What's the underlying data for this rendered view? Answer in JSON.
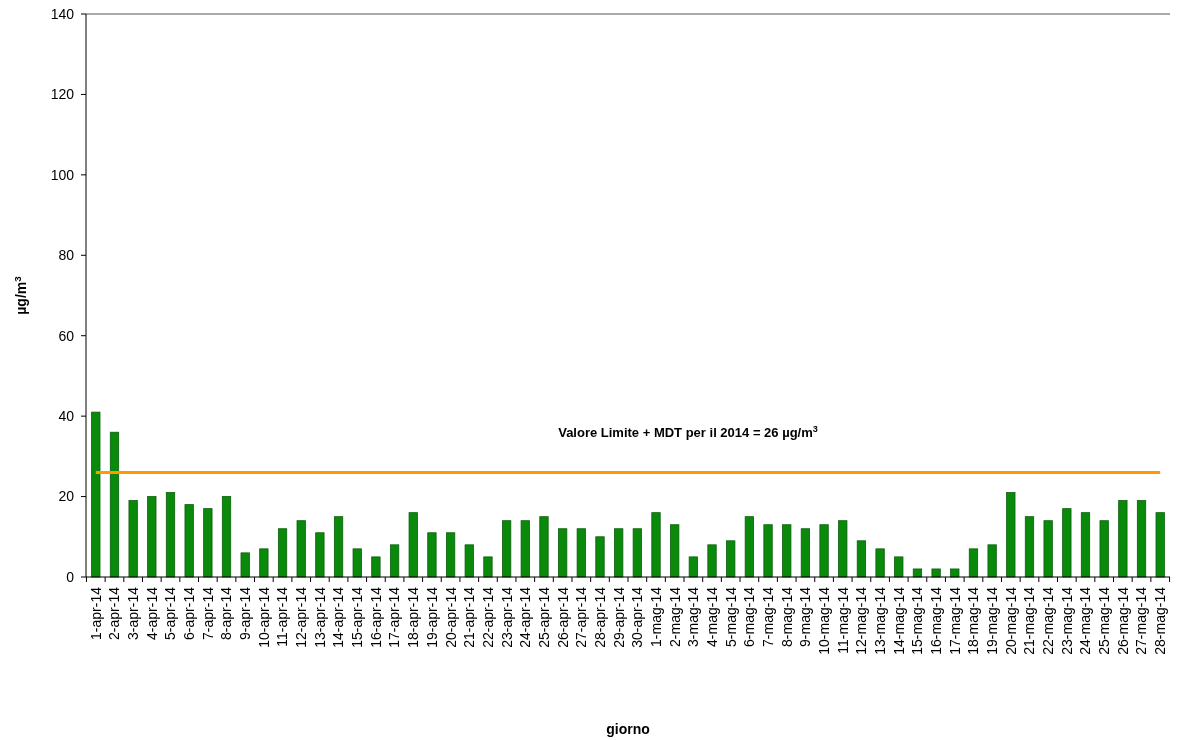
{
  "chart_data": {
    "type": "bar",
    "xlabel": "giorno",
    "ylabel": "µg/m$^{3}$",
    "categories": [
      "1-apr-14",
      "2-apr-14",
      "3-apr-14",
      "4-apr-14",
      "5-apr-14",
      "6-apr-14",
      "7-apr-14",
      "8-apr-14",
      "9-apr-14",
      "10-apr-14",
      "11-apr-14",
      "12-apr-14",
      "13-apr-14",
      "14-apr-14",
      "15-apr-14",
      "16-apr-14",
      "17-apr-14",
      "18-apr-14",
      "19-apr-14",
      "20-apr-14",
      "21-apr-14",
      "22-apr-14",
      "23-apr-14",
      "24-apr-14",
      "25-apr-14",
      "26-apr-14",
      "27-apr-14",
      "28-apr-14",
      "29-apr-14",
      "30-apr-14",
      "1-mag-14",
      "2-mag-14",
      "3-mag-14",
      "4-mag-14",
      "5-mag-14",
      "6-mag-14",
      "7-mag-14",
      "8-mag-14",
      "9-mag-14",
      "10-mag-14",
      "11-mag-14",
      "12-mag-14",
      "13-mag-14",
      "14-mag-14",
      "15-mag-14",
      "16-mag-14",
      "17-mag-14",
      "18-mag-14",
      "19-mag-14",
      "20-mag-14",
      "21-mag-14",
      "22-mag-14",
      "23-mag-14",
      "24-mag-14",
      "25-mag-14",
      "26-mag-14",
      "27-mag-14",
      "28-mag-14"
    ],
    "values": [
      41,
      36,
      19,
      20,
      21,
      18,
      17,
      20,
      6,
      7,
      12,
      14,
      11,
      15,
      7,
      5,
      8,
      16,
      11,
      11,
      8,
      5,
      14,
      14,
      15,
      12,
      12,
      10,
      12,
      12,
      16,
      13,
      5,
      8,
      9,
      15,
      13,
      13,
      12,
      13,
      14,
      9,
      7,
      5,
      2,
      2,
      2,
      7,
      8,
      21,
      15,
      14,
      17,
      16,
      14,
      19,
      19,
      16
    ],
    "color": "#0a8a0a",
    "ylim": [
      0,
      140
    ],
    "yticks": [
      0,
      20,
      40,
      60,
      80,
      100,
      120,
      140
    ],
    "grid": false,
    "ref_lines": [
      {
        "axis": "y",
        "value": 26,
        "label": "Valore Limite + MDT  per il 2014 = 26 µg/m$^{3}$",
        "color": "#ff9900"
      }
    ]
  }
}
